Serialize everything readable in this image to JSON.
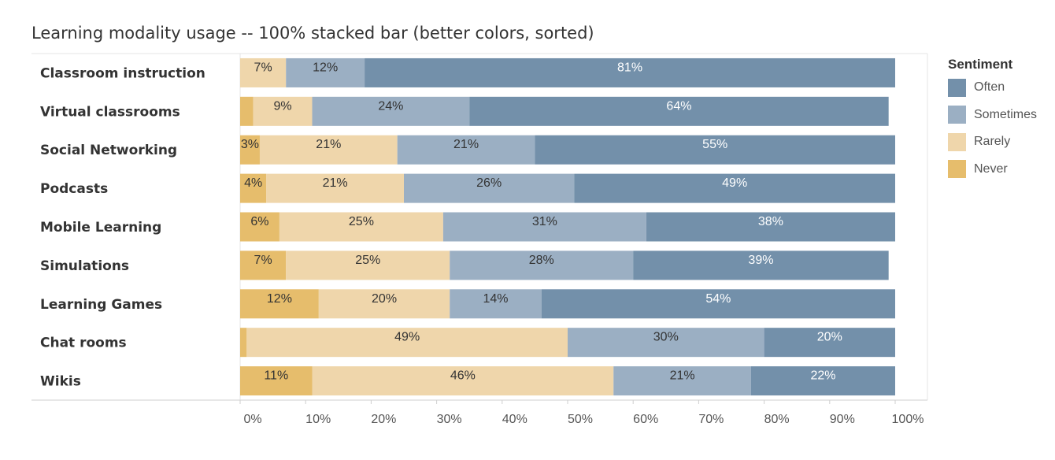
{
  "chart_data": {
    "type": "bar",
    "title": "Learning modality usage -- 100% stacked bar (better colors, sorted)",
    "orientation": "horizontal",
    "stacked": "percent",
    "xlim": [
      0,
      100
    ],
    "x_ticks": [
      "0%",
      "10%",
      "20%",
      "30%",
      "40%",
      "50%",
      "60%",
      "70%",
      "80%",
      "90%",
      "100%"
    ],
    "categories": [
      "Classroom instruction",
      "Virtual classrooms",
      "Social Networking",
      "Podcasts",
      "Mobile Learning",
      "Simulations",
      "Learning Games",
      "Chat rooms",
      "Wikis"
    ],
    "series": [
      {
        "name": "Never",
        "color": "#e6bd6c",
        "values": [
          0,
          2,
          3,
          4,
          6,
          7,
          12,
          1,
          11
        ],
        "labels": [
          "",
          "",
          "3%",
          "4%",
          "6%",
          "7%",
          "12%",
          "",
          "11%"
        ]
      },
      {
        "name": "Rarely",
        "color": "#efd6ab",
        "values": [
          7,
          9,
          21,
          21,
          25,
          25,
          20,
          49,
          46
        ],
        "labels": [
          "7%",
          "9%",
          "21%",
          "21%",
          "25%",
          "25%",
          "20%",
          "49%",
          "46%"
        ]
      },
      {
        "name": "Sometimes",
        "color": "#9bafc3",
        "values": [
          12,
          24,
          21,
          26,
          31,
          28,
          14,
          30,
          21
        ],
        "labels": [
          "12%",
          "24%",
          "21%",
          "26%",
          "31%",
          "28%",
          "14%",
          "30%",
          "21%"
        ]
      },
      {
        "name": "Often",
        "color": "#7390aa",
        "values": [
          81,
          64,
          55,
          49,
          38,
          39,
          54,
          20,
          22
        ],
        "labels": [
          "81%",
          "64%",
          "55%",
          "49%",
          "38%",
          "39%",
          "54%",
          "20%",
          "22%"
        ]
      }
    ],
    "legend": {
      "title": "Sentiment",
      "position": "right",
      "order": [
        "Often",
        "Sometimes",
        "Rarely",
        "Never"
      ]
    },
    "grid": false
  }
}
